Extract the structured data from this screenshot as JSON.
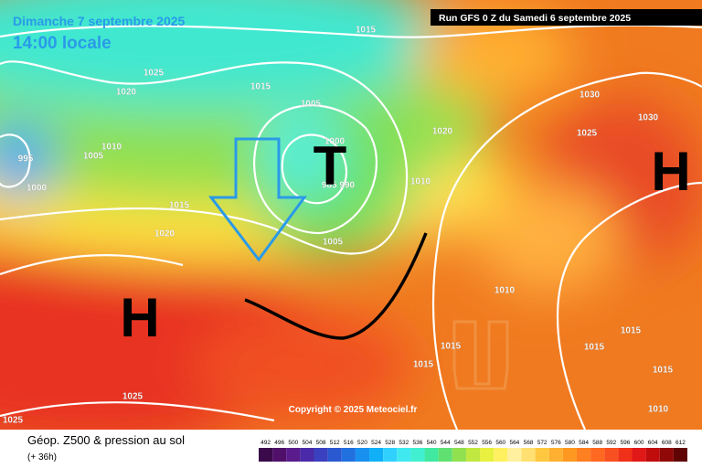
{
  "header": {
    "date": "Dimanche 7 septembre 2025",
    "time": "14:00 locale",
    "run": "Run GFS 0 Z du Samedi 6 septembre 2025"
  },
  "map": {
    "pressure_centers": [
      "T",
      "H",
      "H"
    ],
    "isobar_labels": [
      "1015",
      "1025",
      "1020",
      "1015",
      "1005",
      "1000",
      "1010",
      "1005",
      "995",
      "1000",
      "1015",
      "1020",
      "985 990",
      "1010",
      "1020",
      "1005",
      "1030",
      "1030",
      "1025",
      "1015",
      "1015",
      "1015",
      "1010",
      "1025",
      "1025",
      "1015",
      "1015",
      "1010"
    ],
    "copyright": "Copyright © 2025 Meteociel.fr"
  },
  "footer": {
    "title": "Géop. Z500 & pression au sol",
    "lead": "(+ 36h)",
    "scale": {
      "labels": [
        "492",
        "496",
        "500",
        "504",
        "508",
        "512",
        "516",
        "520",
        "524",
        "528",
        "532",
        "536",
        "540",
        "544",
        "548",
        "552",
        "556",
        "560",
        "564",
        "568",
        "572",
        "576",
        "580",
        "584",
        "588",
        "592",
        "596",
        "600",
        "604",
        "608",
        "612"
      ],
      "colors": [
        "#3a0a4a",
        "#50106a",
        "#5a1c8c",
        "#4a2aa8",
        "#3a40c0",
        "#2a58d0",
        "#2070e0",
        "#1890f0",
        "#10b0f8",
        "#30d0ff",
        "#40e8f0",
        "#40f0d0",
        "#40e8a0",
        "#60e070",
        "#90e050",
        "#c0e840",
        "#e8f040",
        "#fff060",
        "#fff0a0",
        "#ffe070",
        "#ffc840",
        "#ffb030",
        "#ff9820",
        "#ff8020",
        "#ff6820",
        "#f85020",
        "#f03018",
        "#e01818",
        "#c00c0c",
        "#900808",
        "#600404"
      ]
    }
  }
}
